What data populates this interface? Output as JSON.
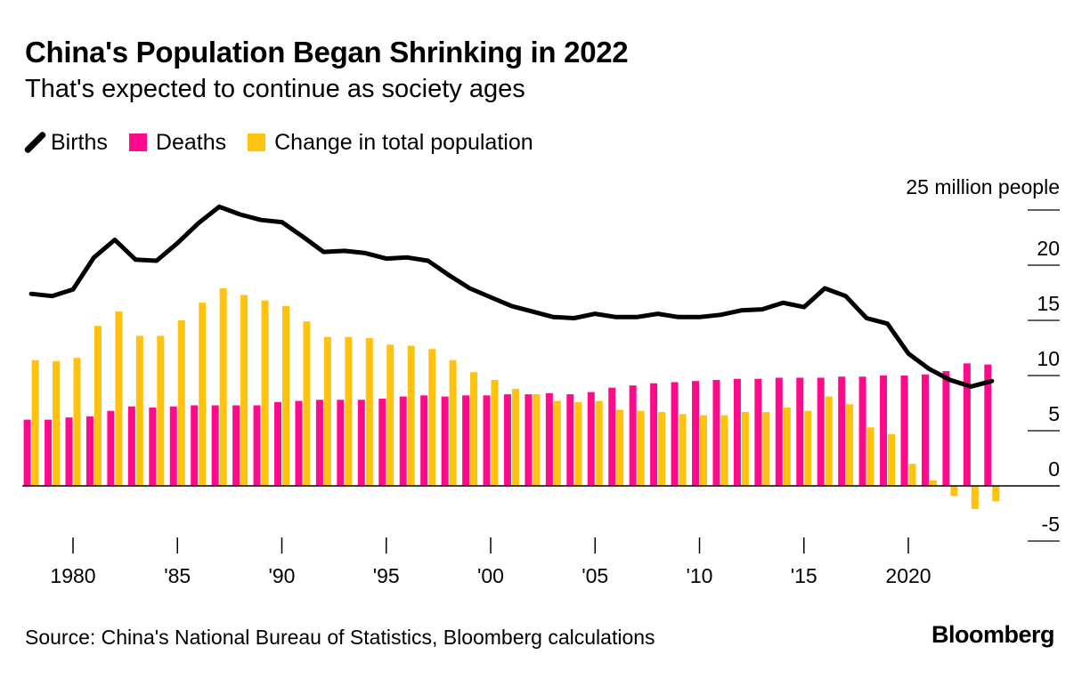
{
  "title": "China's Population Began Shrinking in 2022",
  "subtitle": "That's expected to continue as society ages",
  "legend": {
    "births": "Births",
    "deaths": "Deaths",
    "change": "Change in total population"
  },
  "source": "Source: China's National Bureau of Statistics, Bloomberg calculations",
  "logo": "Bloomberg",
  "colors": {
    "births": "#000000",
    "deaths": "#ff0a8a",
    "change": "#ffc20e",
    "axis": "#000000"
  },
  "chart_data": {
    "type": "bar",
    "title": "China's Population Began Shrinking in 2022",
    "unit_label": "25 million people",
    "ylim": [
      -5,
      25
    ],
    "y_ticks": [
      {
        "value": -5,
        "label": "-5"
      },
      {
        "value": 0,
        "label": "0"
      },
      {
        "value": 5,
        "label": "5"
      },
      {
        "value": 10,
        "label": "10"
      },
      {
        "value": 15,
        "label": "15"
      },
      {
        "value": 20,
        "label": "20"
      },
      {
        "value": 25,
        "label": ""
      }
    ],
    "x_ticks": [
      {
        "year": 1980,
        "label": "1980"
      },
      {
        "year": 1985,
        "label": "'85"
      },
      {
        "year": 1990,
        "label": "'90"
      },
      {
        "year": 1995,
        "label": "'95"
      },
      {
        "year": 2000,
        "label": "'00"
      },
      {
        "year": 2005,
        "label": "'05"
      },
      {
        "year": 2010,
        "label": "'10"
      },
      {
        "year": 2015,
        "label": "'15"
      },
      {
        "year": 2020,
        "label": "2020"
      }
    ],
    "years": [
      1978,
      1979,
      1980,
      1981,
      1982,
      1983,
      1984,
      1985,
      1986,
      1987,
      1988,
      1989,
      1990,
      1991,
      1992,
      1993,
      1994,
      1995,
      1996,
      1997,
      1998,
      1999,
      2000,
      2001,
      2002,
      2003,
      2004,
      2005,
      2006,
      2007,
      2008,
      2009,
      2010,
      2011,
      2012,
      2013,
      2014,
      2015,
      2016,
      2017,
      2018,
      2019,
      2020,
      2021,
      2022,
      2023,
      2024
    ],
    "series": [
      {
        "name": "Births",
        "type": "line",
        "values": [
          17.4,
          17.2,
          17.8,
          20.7,
          22.3,
          20.5,
          20.4,
          22.0,
          23.8,
          25.3,
          24.6,
          24.1,
          23.9,
          22.6,
          21.2,
          21.3,
          21.1,
          20.6,
          20.7,
          20.4,
          19.1,
          17.9,
          17.1,
          16.3,
          15.8,
          15.3,
          15.2,
          15.6,
          15.3,
          15.3,
          15.6,
          15.3,
          15.3,
          15.5,
          15.9,
          16.0,
          16.6,
          16.2,
          17.9,
          17.2,
          15.2,
          14.7,
          12.0,
          10.6,
          9.6,
          9.0,
          9.5
        ]
      },
      {
        "name": "Deaths",
        "type": "bar",
        "values": [
          6.0,
          6.0,
          6.2,
          6.3,
          6.8,
          7.2,
          7.1,
          7.2,
          7.3,
          7.3,
          7.3,
          7.3,
          7.6,
          7.7,
          7.8,
          7.8,
          7.8,
          7.9,
          8.1,
          8.2,
          8.1,
          8.2,
          8.2,
          8.3,
          8.3,
          8.4,
          8.3,
          8.5,
          8.9,
          9.1,
          9.3,
          9.4,
          9.5,
          9.6,
          9.7,
          9.7,
          9.8,
          9.8,
          9.8,
          9.9,
          9.9,
          10.0,
          10.0,
          10.1,
          10.4,
          11.1,
          11.0
        ]
      },
      {
        "name": "Change in total population",
        "type": "bar",
        "values": [
          11.4,
          11.3,
          11.6,
          14.5,
          15.8,
          13.6,
          13.6,
          15.0,
          16.6,
          17.9,
          17.3,
          16.8,
          16.3,
          14.9,
          13.5,
          13.5,
          13.4,
          12.8,
          12.7,
          12.4,
          11.4,
          10.3,
          9.6,
          8.8,
          8.3,
          7.7,
          7.6,
          7.7,
          6.9,
          6.8,
          6.7,
          6.5,
          6.4,
          6.4,
          6.7,
          6.7,
          7.1,
          6.8,
          8.1,
          7.4,
          5.3,
          4.7,
          2.0,
          0.5,
          -0.9,
          -2.1,
          -1.4
        ]
      }
    ]
  }
}
